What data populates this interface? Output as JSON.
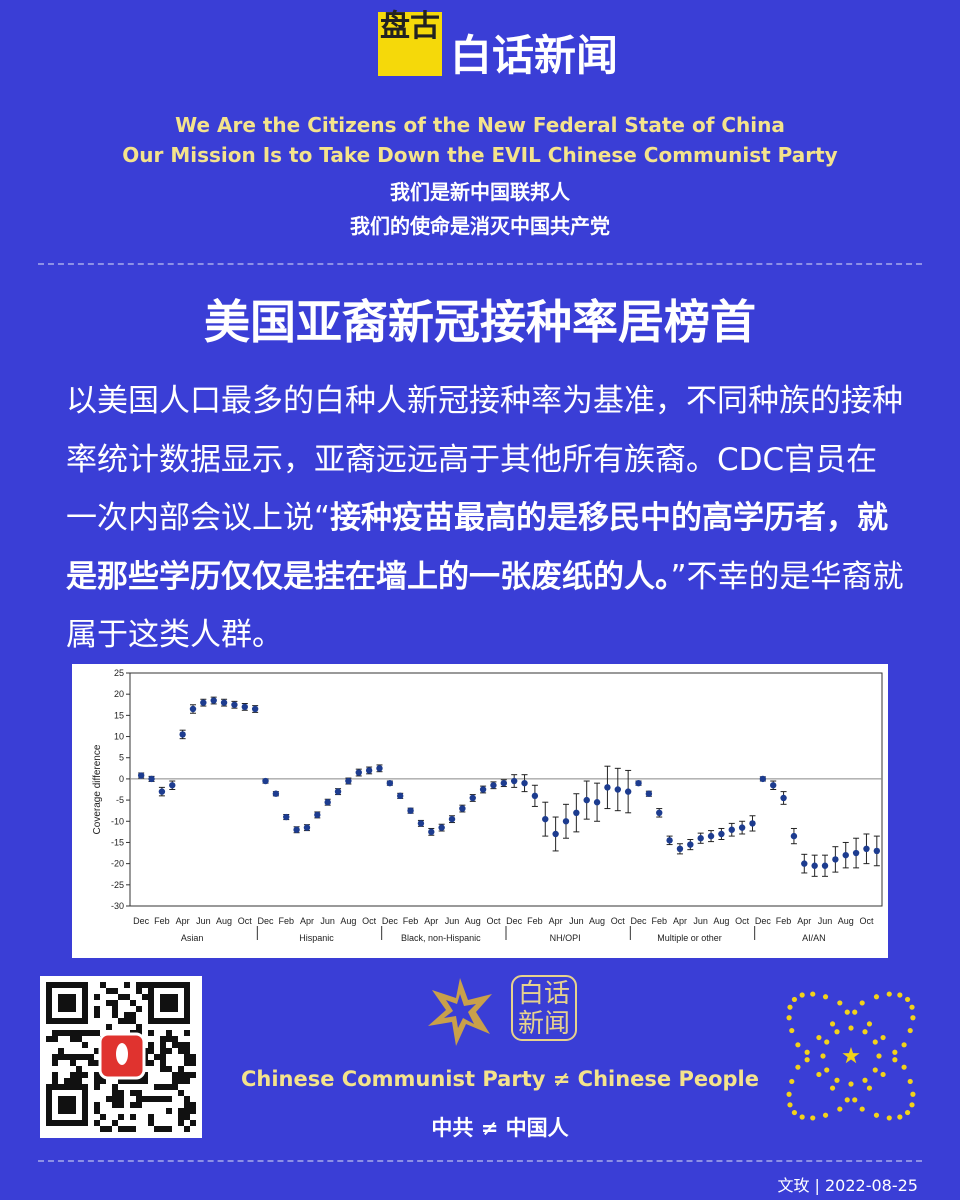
{
  "header": {
    "logo_mark": "盘古",
    "logo_text": "白话新闻",
    "english_lines": [
      "We Are the Citizens of the New Federal State of China",
      "Our Mission Is to Take Down the EVIL Chinese Communist Party"
    ],
    "chinese_lines": [
      "我们是新中国联邦人",
      "我们的使命是消灭中国共产党"
    ]
  },
  "article": {
    "title": "美国亚裔新冠接种率居榜首",
    "part1": "以美国人口最多的白种人新冠接种率为基准，不同种族的接种率统计数据显示，亚裔远远高于其他所有族裔。CDC官员在一次内部会议上说“",
    "bold": "接种疫苗最高的是移民中的高学历者，就是那些学历仅仅是挂在墙上的一张废纸的人。",
    "part2": "”不幸的是华裔就属于这类人群。"
  },
  "chart_data": {
    "type": "errorbar",
    "y_label": "Coverage difference",
    "categories": [
      "Dec",
      null,
      "Feb",
      null,
      "Apr",
      null,
      "Jun",
      null,
      "Aug",
      null,
      "Oct",
      null
    ],
    "ylim": [
      -30,
      25
    ],
    "yticks": [
      -30,
      -25,
      -20,
      -15,
      -10,
      -5,
      0,
      5,
      10,
      15,
      20,
      25
    ],
    "reference_line": 0,
    "color": "#1d3c8f",
    "series": [
      {
        "name": "Asian",
        "values": [
          0.8,
          0,
          -3,
          -1.5,
          10.5,
          16.5,
          18,
          18.5,
          18,
          17.5,
          17,
          16.5
        ],
        "errors": [
          0.6,
          0.6,
          1,
          1,
          1,
          1,
          0.8,
          0.8,
          0.8,
          0.8,
          0.8,
          0.8
        ]
      },
      {
        "name": "Hispanic",
        "values": [
          -0.5,
          -3.5,
          -9,
          -12,
          -11.5,
          -8.5,
          -5.5,
          -3,
          -0.5,
          1.5,
          2,
          2.5
        ],
        "errors": [
          0.5,
          0.5,
          0.6,
          0.7,
          0.7,
          0.7,
          0.7,
          0.7,
          0.7,
          0.8,
          0.8,
          0.8
        ]
      },
      {
        "name": "Black, non-Hispanic",
        "values": [
          -1,
          -4,
          -7.5,
          -10.5,
          -12.5,
          -11.5,
          -9.5,
          -7,
          -4.5,
          -2.5,
          -1.5,
          -1
        ],
        "errors": [
          0.5,
          0.6,
          0.6,
          0.7,
          0.8,
          0.8,
          0.8,
          0.8,
          0.8,
          0.8,
          0.8,
          0.8
        ]
      },
      {
        "name": "NH/OPI",
        "values": [
          -0.5,
          -1,
          -4,
          -9.5,
          -13,
          -10,
          -8,
          -5,
          -5.5,
          -2,
          -2.5,
          -3
        ],
        "errors": [
          1.5,
          2,
          2.5,
          4,
          4,
          4,
          4.5,
          4.5,
          4.5,
          5,
          5,
          5
        ]
      },
      {
        "name": "Multiple or other",
        "values": [
          -1,
          -3.5,
          -8,
          -14.5,
          -16.5,
          -15.5,
          -14,
          -13.5,
          -13,
          -12,
          -11.5,
          -10.5
        ],
        "errors": [
          0.5,
          0.6,
          1,
          1,
          1.2,
          1.2,
          1.2,
          1.3,
          1.3,
          1.5,
          1.5,
          1.8
        ]
      },
      {
        "name": "AI/AN",
        "values": [
          0,
          -1.5,
          -4.5,
          -13.5,
          -20,
          -20.5,
          -20.5,
          -19,
          -18,
          -17.5,
          -16.5,
          -17
        ],
        "errors": [
          0.5,
          1,
          1.5,
          1.8,
          2.2,
          2.5,
          2.5,
          3,
          3,
          3.5,
          3.5,
          3.5
        ]
      }
    ]
  },
  "footer": {
    "logo_text_1": "白话",
    "logo_text_2": "新闻",
    "english": "Chinese Communist Party ≠ Chinese People",
    "chinese": "中共 ≠ 中国人",
    "credit": "文玫 | 2022-08-25"
  }
}
